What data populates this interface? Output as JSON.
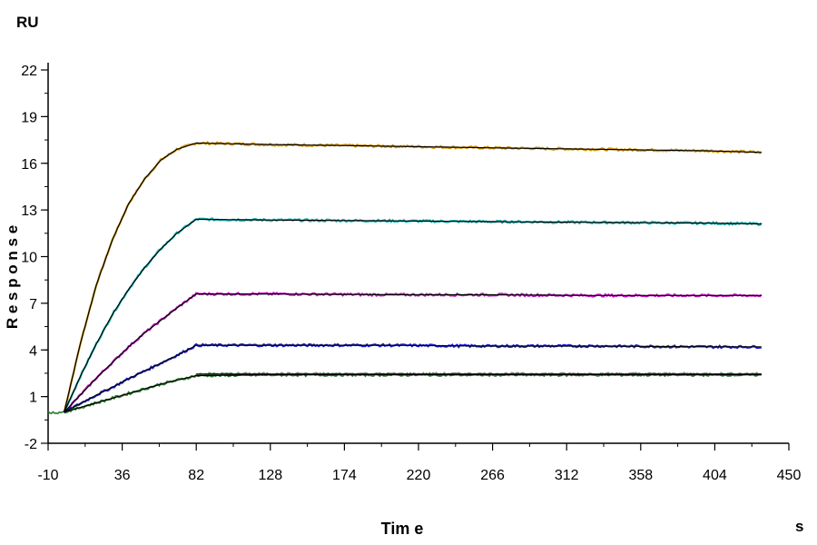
{
  "chart_data": {
    "type": "line",
    "title": "",
    "xlabel": "Tim e",
    "ylabel": "R e s p o n s e",
    "x_unit": "s",
    "y_unit": "RU",
    "xlim": [
      -10,
      450
    ],
    "ylim": [
      -2,
      22
    ],
    "x_ticks": [
      "-10",
      "36",
      "82",
      "128",
      "174",
      "220",
      "266",
      "312",
      "358",
      "404",
      "450"
    ],
    "y_ticks": [
      "22",
      "19",
      "16",
      "13",
      "10",
      "7",
      "4",
      "1",
      "-2"
    ],
    "grid": false,
    "legend": "none",
    "fit_color": "#000000",
    "series": [
      {
        "color": "#d4960a",
        "x": [
          0,
          10,
          20,
          30,
          40,
          50,
          60,
          70,
          82,
          130,
          200,
          260,
          330,
          400,
          433
        ],
        "values": [
          0,
          4.4,
          8.2,
          11.1,
          13.4,
          15.0,
          16.2,
          16.9,
          17.3,
          17.2,
          17.1,
          17.0,
          16.9,
          16.8,
          16.7
        ]
      },
      {
        "color": "#16b5b5",
        "x": [
          0,
          10,
          20,
          30,
          40,
          50,
          60,
          70,
          82,
          130,
          200,
          260,
          330,
          400,
          433
        ],
        "values": [
          0,
          2.3,
          4.4,
          6.3,
          7.9,
          9.3,
          10.5,
          11.5,
          12.4,
          12.35,
          12.3,
          12.25,
          12.2,
          12.15,
          12.1
        ]
      },
      {
        "color": "#c418c4",
        "x": [
          0,
          10,
          20,
          30,
          40,
          50,
          60,
          70,
          82,
          130,
          200,
          260,
          330,
          400,
          433
        ],
        "values": [
          0,
          1.1,
          2.2,
          3.2,
          4.2,
          5.1,
          5.9,
          6.7,
          7.6,
          7.6,
          7.55,
          7.55,
          7.5,
          7.5,
          7.5
        ]
      },
      {
        "color": "#1f1fd6",
        "x": [
          0,
          10,
          20,
          30,
          40,
          50,
          60,
          70,
          82,
          130,
          200,
          260,
          330,
          400,
          433
        ],
        "values": [
          0,
          0.55,
          1.1,
          1.6,
          2.15,
          2.65,
          3.15,
          3.65,
          4.3,
          4.3,
          4.3,
          4.25,
          4.25,
          4.2,
          4.2
        ]
      },
      {
        "color": "#2e7d32",
        "x": [
          0,
          10,
          20,
          30,
          40,
          50,
          60,
          70,
          82,
          130,
          200,
          260,
          330,
          400,
          433
        ],
        "values": [
          0,
          0.3,
          0.6,
          0.9,
          1.2,
          1.5,
          1.8,
          2.05,
          2.35,
          2.4,
          2.4,
          2.4,
          2.4,
          2.4,
          2.4
        ]
      },
      {
        "color": "#7a8a7a",
        "x": [
          82,
          150,
          220,
          300,
          380,
          433
        ],
        "values": [
          2.45,
          2.45,
          2.45,
          2.45,
          2.45,
          2.45
        ]
      }
    ]
  }
}
